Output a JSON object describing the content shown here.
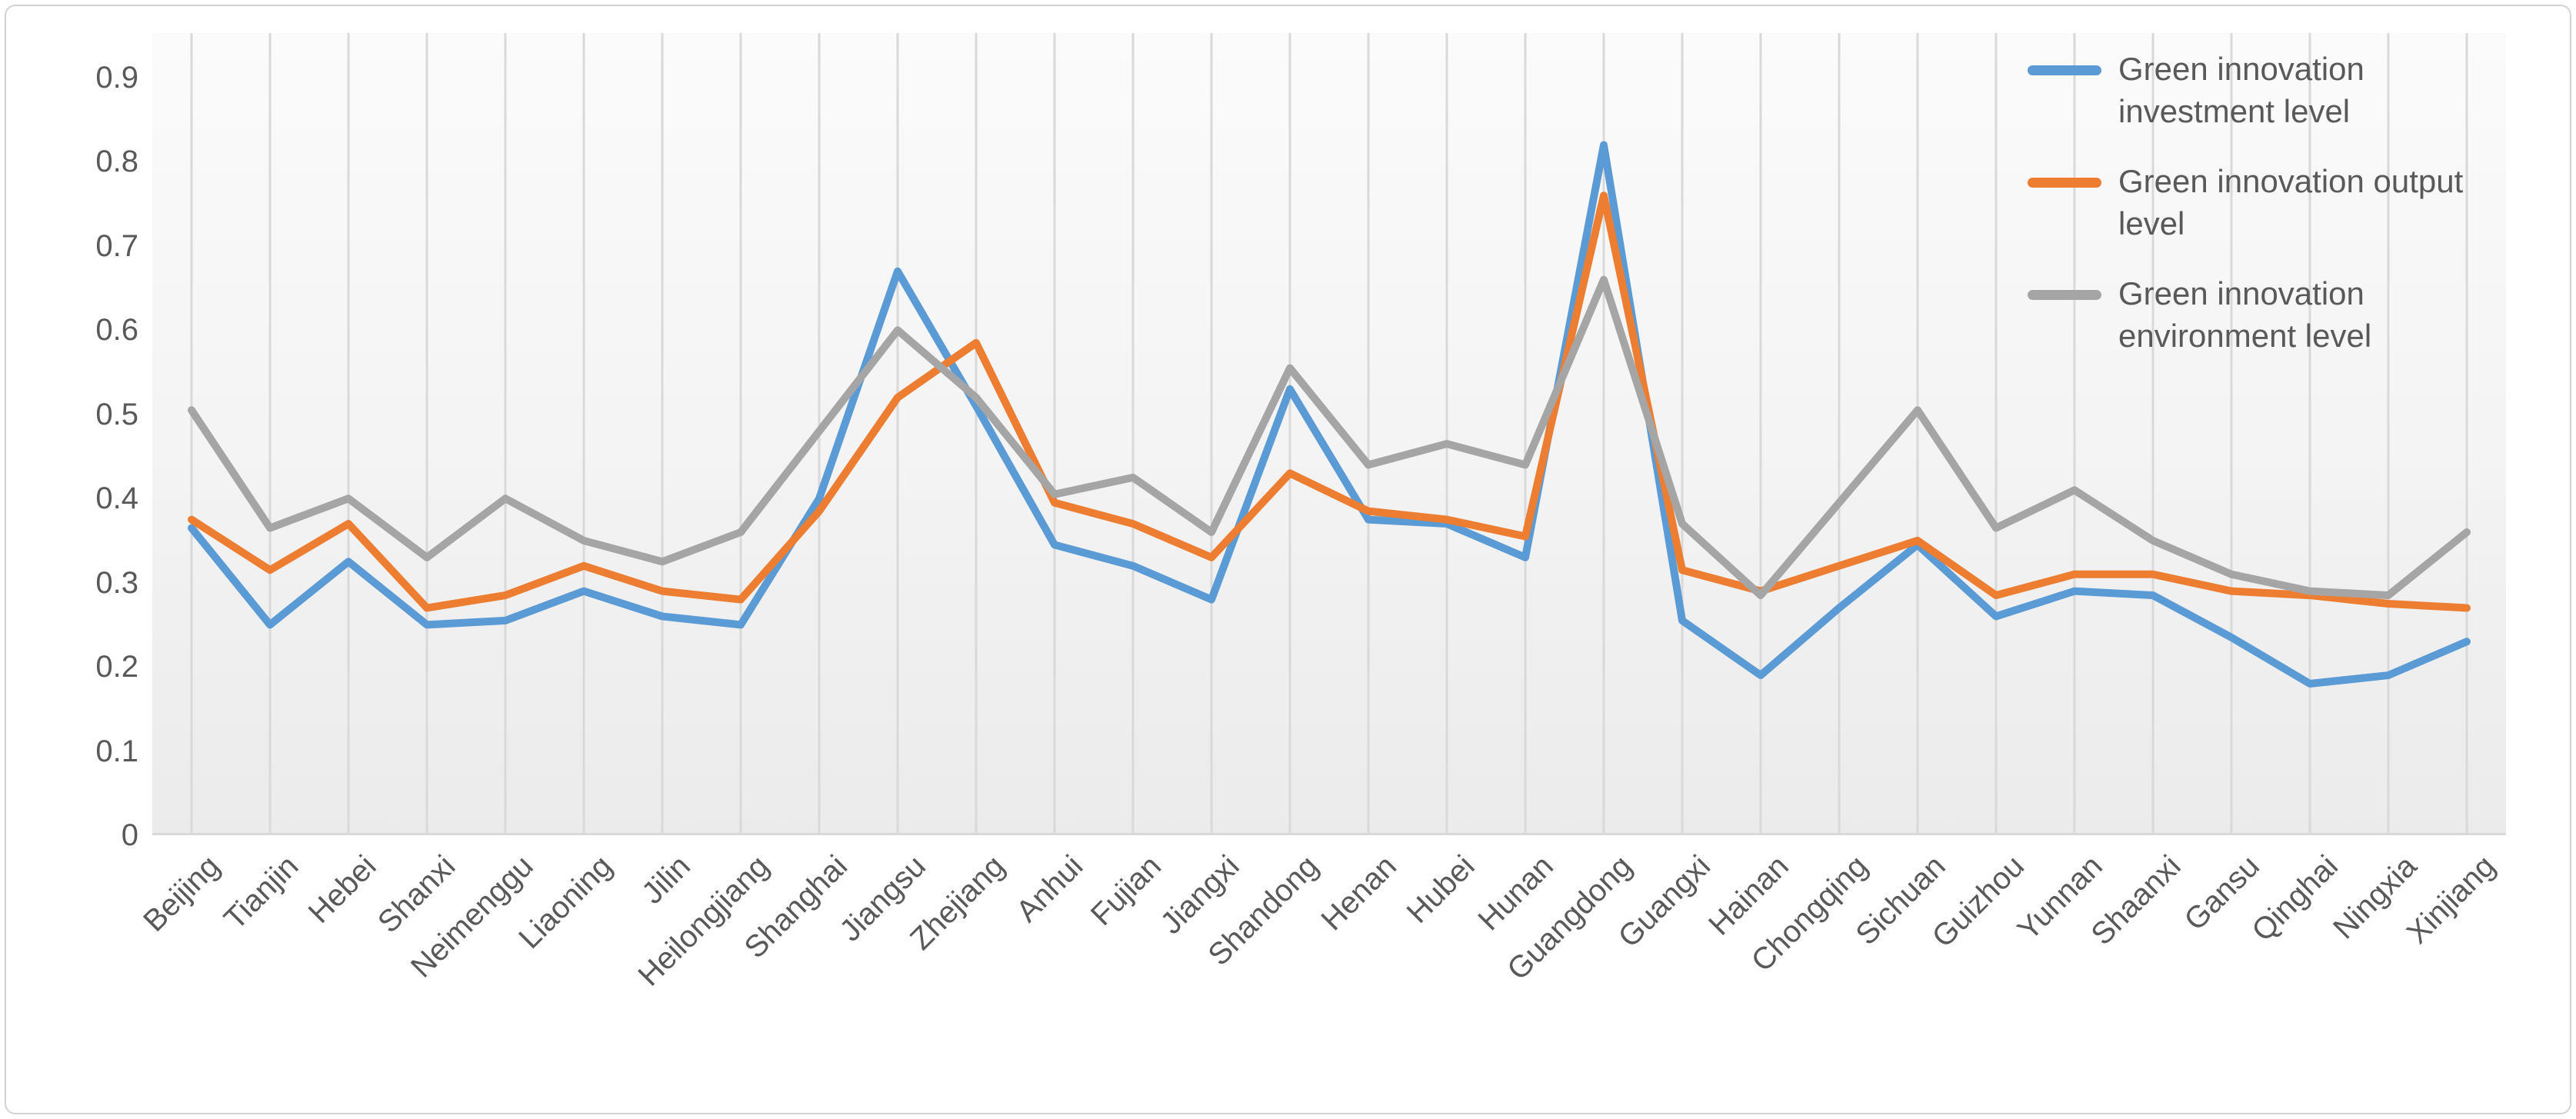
{
  "chart_data": {
    "type": "line",
    "title": "",
    "xlabel": "",
    "ylabel": "",
    "ylim": [
      0,
      0.9
    ],
    "y_tick_step": 0.1,
    "y_ticks": [
      "0.9",
      "0.8",
      "0.7",
      "0.6",
      "0.5",
      "0.4",
      "0.3",
      "0.2",
      "0.1",
      "0"
    ],
    "grid": "vertical-category-gridlines",
    "legend_position": "top-right",
    "categories": [
      "Beijing",
      "Tianjin",
      "Hebei",
      "Shanxi",
      "Neimenggu",
      "Liaoning",
      "Jilin",
      "Heilongjiang",
      "Shanghai",
      "Jiangsu",
      "Zhejiang",
      "Anhui",
      "Fujian",
      "Jiangxi",
      "Shandong",
      "Henan",
      "Hubei",
      "Hunan",
      "Guangdong",
      "Guangxi",
      "Hainan",
      "Chongqing",
      "Sichuan",
      "Guizhou",
      "Yunnan",
      "Shaanxi",
      "Gansu",
      "Qinghai",
      "Ningxia",
      "Xinjiang"
    ],
    "series": [
      {
        "name": "Green innovation investment level",
        "color": "#5B9BD5",
        "values": [
          0.365,
          0.25,
          0.325,
          0.25,
          0.255,
          0.29,
          0.26,
          0.25,
          0.4,
          0.67,
          0.51,
          0.345,
          0.32,
          0.28,
          0.53,
          0.375,
          0.37,
          0.33,
          0.82,
          0.255,
          0.19,
          0.27,
          0.345,
          0.26,
          0.29,
          0.285,
          0.235,
          0.18,
          0.19,
          0.23
        ]
      },
      {
        "name": "Green innovation output level",
        "color": "#ED7D31",
        "values": [
          0.375,
          0.315,
          0.37,
          0.27,
          0.285,
          0.32,
          0.29,
          0.28,
          0.385,
          0.52,
          0.585,
          0.395,
          0.37,
          0.33,
          0.43,
          0.385,
          0.375,
          0.355,
          0.76,
          0.315,
          0.29,
          0.32,
          0.35,
          0.285,
          0.31,
          0.31,
          0.29,
          0.285,
          0.275,
          0.27
        ]
      },
      {
        "name": "Green innovation environment level",
        "color": "#A5A5A5",
        "values": [
          0.505,
          0.365,
          0.4,
          0.33,
          0.4,
          0.35,
          0.325,
          0.36,
          0.48,
          0.6,
          0.52,
          0.405,
          0.425,
          0.36,
          0.555,
          0.44,
          0.465,
          0.44,
          0.66,
          0.37,
          0.285,
          0.395,
          0.505,
          0.365,
          0.41,
          0.35,
          0.31,
          0.29,
          0.285,
          0.36
        ]
      }
    ],
    "style": {
      "plot_bg_top": "#fbfbfb",
      "plot_bg_bottom": "#ebebeb",
      "gridline_color": "#d9d9d9",
      "axis_line_color": "#d9d9d9",
      "tick_label_color": "#595959",
      "line_width": 10
    }
  }
}
